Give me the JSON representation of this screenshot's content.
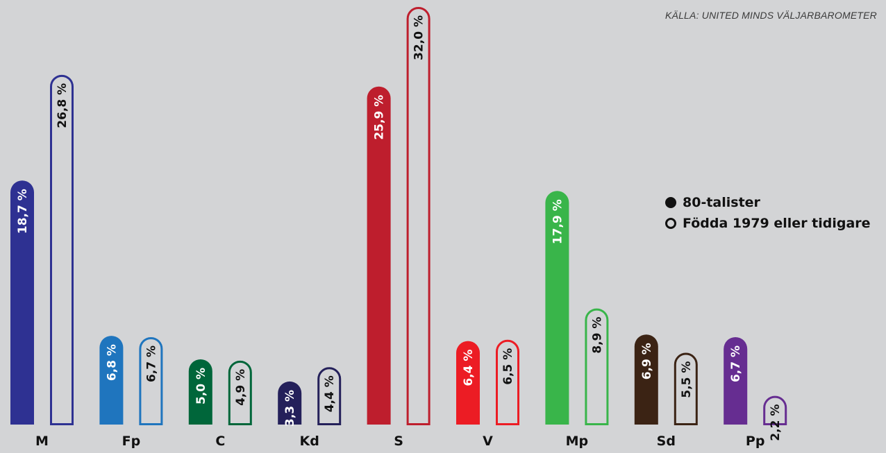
{
  "source": "KÄLLA: UNITED MINDS VÄLJARBAROMETER",
  "legend": {
    "filled": "80-talister",
    "outline": "Födda 1979 eller tidigare"
  },
  "chart_data": {
    "type": "bar",
    "categories": [
      "M",
      "Fp",
      "C",
      "Kd",
      "S",
      "V",
      "Mp",
      "Sd",
      "Pp"
    ],
    "colors": [
      "#2e3192",
      "#1f75be",
      "#00663a",
      "#24205a",
      "#be1e2d",
      "#ec1c24",
      "#39b54a",
      "#3b2314",
      "#662d91"
    ],
    "series": [
      {
        "name": "80-talister",
        "style": "filled",
        "values": [
          18.7,
          6.8,
          5.0,
          3.3,
          25.9,
          6.4,
          17.9,
          6.9,
          6.7
        ],
        "labels": [
          "18,7 %",
          "6,8 %",
          "5,0 %",
          "3,3 %",
          "25,9 %",
          "6,4 %",
          "17,9 %",
          "6,9 %",
          "6,7 %"
        ]
      },
      {
        "name": "Födda 1979 eller tidigare",
        "style": "outline",
        "values": [
          26.8,
          6.7,
          4.9,
          4.4,
          32.0,
          6.5,
          8.9,
          5.5,
          2.2
        ],
        "labels": [
          "26,8 %",
          "6,7 %",
          "4,9 %",
          "4,4 %",
          "32,0 %",
          "6,5 %",
          "8,9 %",
          "5,5 %",
          "2,2 %"
        ]
      }
    ],
    "ylim": [
      0,
      32.0
    ]
  }
}
